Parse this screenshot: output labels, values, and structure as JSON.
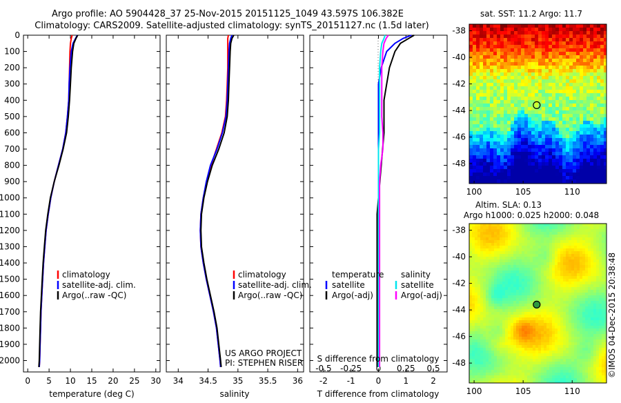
{
  "header": {
    "line1": "Argo profile: AO 5904428_37 25-Nov-2015 20151125_1049 43.597S 106.382E",
    "line2": "Climatology: CARS2009. Satellite-adjusted climatology: synTS_20151127.nc (1.5d later)"
  },
  "colors": {
    "climatology": "#ff0000",
    "satellite": "#0000ff",
    "argo": "#000000",
    "sat_salinity": "#00e5ee",
    "argo_salinity": "#ff00ff"
  },
  "credits": {
    "project": "US ARGO PROJECT",
    "pi": "PI: STEPHEN RISER"
  },
  "watermark": "©IMOS 04-Dec-2015 20:38:48",
  "chart_data": [
    {
      "id": "temperature",
      "type": "line",
      "xlabel": "temperature (deg C)",
      "xlim": [
        -1,
        31
      ],
      "xticks": [
        0,
        5,
        10,
        15,
        20,
        25,
        30
      ],
      "xtick_labels": [
        "0",
        "5",
        "10",
        "15",
        "20",
        "25",
        "30"
      ],
      "ylim": [
        2070,
        0
      ],
      "yticks": [
        0,
        100,
        200,
        300,
        400,
        500,
        600,
        700,
        800,
        900,
        1000,
        1100,
        1200,
        1300,
        1400,
        1500,
        1600,
        1700,
        1800,
        1900,
        2000
      ],
      "depth": [
        0,
        20,
        50,
        100,
        200,
        300,
        400,
        500,
        600,
        700,
        800,
        900,
        1000,
        1100,
        1200,
        1300,
        1400,
        1500,
        1600,
        1700,
        1800,
        1900,
        2000,
        2040
      ],
      "legend": [
        "climatology",
        "satellite-adj. clim.",
        "Argo(..raw -QC)"
      ],
      "series": [
        {
          "name": "climatology",
          "color_key": "climatology",
          "values": [
            10.4,
            10.2,
            10.0,
            9.9,
            9.8,
            9.7,
            9.6,
            9.3,
            8.9,
            8.2,
            7.2,
            6.2,
            5.4,
            4.8,
            4.3,
            4.0,
            3.7,
            3.5,
            3.3,
            3.1,
            3.0,
            2.9,
            2.8,
            2.7
          ]
        },
        {
          "name": "satellite-adj. clim.",
          "color_key": "satellite",
          "values": [
            11.6,
            11.2,
            10.6,
            10.2,
            9.9,
            9.7,
            9.6,
            9.3,
            8.9,
            8.2,
            7.2,
            6.2,
            5.4,
            4.8,
            4.3,
            4.0,
            3.7,
            3.5,
            3.3,
            3.1,
            3.0,
            2.9,
            2.8,
            2.7
          ]
        },
        {
          "name": "Argo(..raw -QC)",
          "color_key": "argo",
          "values": [
            11.7,
            11.3,
            10.8,
            10.5,
            10.2,
            10.0,
            9.8,
            9.5,
            9.1,
            8.3,
            7.3,
            6.2,
            5.3,
            4.7,
            4.2,
            3.9,
            3.6,
            3.4,
            3.2,
            3.0,
            2.9,
            2.8,
            2.7,
            2.6
          ]
        }
      ]
    },
    {
      "id": "salinity",
      "type": "line",
      "xlabel": "salinity",
      "xlim": [
        33.8,
        36.1
      ],
      "xticks": [
        34,
        34.5,
        35,
        35.5,
        36
      ],
      "xtick_labels": [
        "34",
        "34.5",
        "35",
        "35.5",
        "36"
      ],
      "ylim": [
        2070,
        0
      ],
      "depth": [
        0,
        20,
        50,
        100,
        200,
        300,
        400,
        500,
        600,
        700,
        800,
        900,
        1000,
        1100,
        1200,
        1300,
        1400,
        1500,
        1600,
        1700,
        1800,
        1900,
        2000,
        2040
      ],
      "legend": [
        "climatology",
        "satellite-adj. clim.",
        "Argo(..raw -QC)"
      ],
      "series": [
        {
          "name": "climatology",
          "color_key": "climatology",
          "values": [
            34.84,
            34.83,
            34.83,
            34.83,
            34.83,
            34.82,
            34.81,
            34.79,
            34.73,
            34.64,
            34.55,
            34.48,
            34.42,
            34.38,
            34.37,
            34.38,
            34.42,
            34.47,
            34.53,
            34.59,
            34.64,
            34.67,
            34.7,
            34.71
          ]
        },
        {
          "name": "satellite-adj. clim.",
          "color_key": "satellite",
          "values": [
            34.9,
            34.88,
            34.86,
            34.85,
            34.84,
            34.83,
            34.82,
            34.8,
            34.74,
            34.65,
            34.54,
            34.47,
            34.42,
            34.38,
            34.37,
            34.38,
            34.42,
            34.47,
            34.53,
            34.59,
            34.64,
            34.67,
            34.7,
            34.71
          ]
        },
        {
          "name": "Argo(..raw -QC)",
          "color_key": "argo",
          "values": [
            34.93,
            34.9,
            34.88,
            34.87,
            34.86,
            34.85,
            34.84,
            34.82,
            34.77,
            34.68,
            34.57,
            34.49,
            34.43,
            34.39,
            34.38,
            34.39,
            34.43,
            34.48,
            34.54,
            34.6,
            34.65,
            34.68,
            34.71,
            34.72
          ]
        }
      ]
    },
    {
      "id": "difference",
      "type": "line",
      "xlabel": "T difference from climatology",
      "xlabel_top": "S difference from climatology",
      "xlim": [
        -2.5,
        2.5
      ],
      "xticks": [
        -2,
        -1,
        0,
        1,
        2
      ],
      "xtick_labels": [
        "-2",
        "-1",
        "0",
        "1",
        "2"
      ],
      "s_ticks": [
        -0.5,
        -0.25,
        0,
        0.25,
        0.5
      ],
      "s_tick_labels": [
        "-0.5",
        "-0.25",
        "0",
        "0.25",
        "0.5"
      ],
      "ylim": [
        2070,
        0
      ],
      "depth": [
        0,
        20,
        50,
        100,
        200,
        300,
        400,
        500,
        600,
        700,
        800,
        900,
        1000,
        1100,
        1200,
        1300,
        1400,
        1500,
        1600,
        1700,
        1800,
        1900,
        2000,
        2040
      ],
      "legend_temperature_title": "temperature",
      "legend_salinity_title": "salinity",
      "legend_temperature": [
        "satellite",
        "Argo(-adj)"
      ],
      "legend_salinity": [
        "satellite",
        "Argo(-adj)"
      ],
      "series": [
        {
          "name": "temperature satellite",
          "color_key": "satellite",
          "values": [
            1.2,
            0.9,
            0.6,
            0.3,
            0.1,
            0.0,
            0.0,
            0.0,
            0.0,
            0.0,
            0.0,
            0.0,
            0.0,
            0.0,
            0.0,
            0.0,
            0.0,
            0.0,
            0.0,
            0.0,
            0.0,
            0.0,
            0.0,
            0.0
          ]
        },
        {
          "name": "temperature Argo(-adj)",
          "color_key": "argo",
          "values": [
            1.3,
            1.1,
            0.8,
            0.6,
            0.4,
            0.3,
            0.2,
            0.2,
            0.2,
            0.15,
            0.1,
            0.05,
            0.0,
            -0.05,
            -0.05,
            -0.05,
            -0.05,
            -0.05,
            -0.05,
            -0.05,
            -0.05,
            -0.05,
            -0.05,
            -0.05
          ]
        },
        {
          "name": "salinity satellite",
          "color_key": "sat_salinity",
          "values": [
            0.06,
            0.05,
            0.03,
            0.02,
            0.01,
            0.01,
            0.01,
            0.01,
            0.01,
            0.0,
            0.0,
            0.0,
            0.0,
            0.0,
            0.0,
            0.0,
            0.0,
            0.0,
            0.0,
            0.0,
            0.0,
            0.0,
            0.0,
            0.0
          ]
        },
        {
          "name": "salinity Argo(-adj)",
          "color_key": "argo_salinity",
          "values": [
            0.09,
            0.07,
            0.05,
            0.04,
            0.03,
            0.03,
            0.03,
            0.03,
            0.04,
            0.04,
            0.02,
            0.01,
            0.01,
            0.01,
            0.01,
            0.01,
            0.01,
            0.01,
            0.01,
            0.01,
            0.01,
            0.01,
            0.01,
            0.01
          ]
        }
      ]
    },
    {
      "id": "sst-map",
      "type": "heatmap",
      "title": "sat. SST: 11.2  Argo: 11.7",
      "xlim": [
        99.5,
        113.5
      ],
      "ylim": [
        -49.5,
        -37.5
      ],
      "xticks": [
        100,
        105,
        110
      ],
      "xtick_labels": [
        "100",
        "105",
        "110"
      ],
      "yticks": [
        -38,
        -40,
        -42,
        -44,
        -46,
        -48
      ],
      "ytick_labels": [
        "-38",
        "-40",
        "-42",
        "-44",
        "-46",
        "-48"
      ],
      "marker": {
        "lon": 106.382,
        "lat": -43.597
      }
    },
    {
      "id": "sla-map",
      "type": "heatmap",
      "title_line1": "Altim. SLA: 0.13",
      "title_line2": "Argo h1000: 0.025 h2000: 0.048",
      "xlim": [
        99.5,
        113.5
      ],
      "ylim": [
        -49.5,
        -37.5
      ],
      "xticks": [
        100,
        105,
        110
      ],
      "xtick_labels": [
        "100",
        "105",
        "110"
      ],
      "yticks": [
        -38,
        -40,
        -42,
        -44,
        -46,
        -48
      ],
      "ytick_labels": [
        "-38",
        "-40",
        "-42",
        "-44",
        "-46",
        "-48"
      ],
      "marker": {
        "lon": 106.382,
        "lat": -43.597
      }
    }
  ]
}
